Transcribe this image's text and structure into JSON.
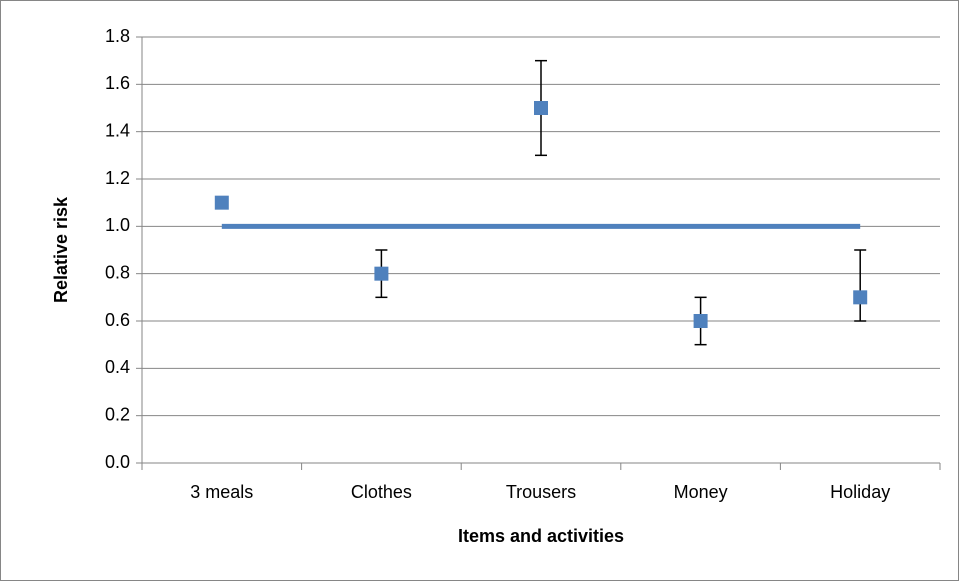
{
  "chart_data": {
    "type": "scatter",
    "x_label": "Items and activities",
    "y_label": "Relative risk",
    "categories": [
      "3 meals",
      "Clothes",
      "Trousers",
      "Money",
      "Holiday"
    ],
    "series": [
      {
        "color": "#4f81bd",
        "values": [
          1.1,
          0.8,
          1.5,
          0.6,
          0.7
        ],
        "lower": [
          null,
          0.7,
          1.3,
          0.5,
          0.6
        ],
        "upper": [
          null,
          0.9,
          1.7,
          0.7,
          0.9
        ]
      },
      {
        "type": "line",
        "color": "#4f81bd",
        "values": [
          1.0,
          1.0,
          1.0,
          1.0,
          1.0
        ]
      }
    ],
    "ylim": [
      0,
      1.8
    ],
    "yticks": [
      {
        "value": 0,
        "label": "0.0"
      },
      0.2,
      0.4,
      0.6,
      0.8,
      {
        "value": 1,
        "label": "1.0"
      },
      1.2,
      1.4,
      1.6,
      1.8
    ],
    "grid": true
  }
}
